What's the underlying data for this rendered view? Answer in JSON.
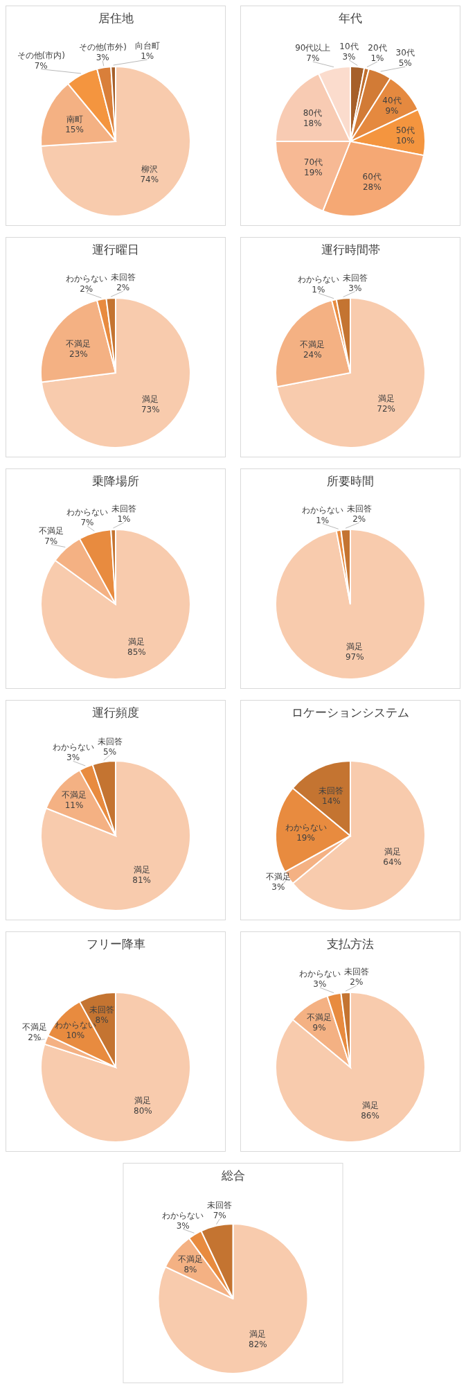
{
  "chart_data": [
    {
      "type": "pie",
      "title": "居住地",
      "categories": [
        "柳沢",
        "南町",
        "その他(市内)",
        "その他(市外)",
        "向台町"
      ],
      "values": [
        74,
        15,
        7,
        3,
        1
      ],
      "colors": [
        "#f8cbad",
        "#f4b183",
        "#f4953f",
        "#d97f3a",
        "#a65f2a"
      ],
      "value_labels": [
        "74%",
        "15%",
        "7%",
        "3%",
        "1%"
      ]
    },
    {
      "type": "pie",
      "title": "年代",
      "categories": [
        "10代",
        "20代",
        "30代",
        "40代",
        "50代",
        "60代",
        "70代",
        "80代",
        "90代以上"
      ],
      "values": [
        3,
        1,
        5,
        9,
        10,
        28,
        19,
        18,
        7
      ],
      "colors": [
        "#a6602a",
        "#c06f2e",
        "#d27b36",
        "#e5893f",
        "#f4953f",
        "#f5a874",
        "#f7b994",
        "#f8cbb3",
        "#fbdccd"
      ],
      "value_labels": [
        "3%",
        "1%",
        "5%",
        "9%",
        "10%",
        "28%",
        "19%",
        "18%",
        "7%"
      ]
    },
    {
      "type": "pie",
      "title": "運行曜日",
      "categories": [
        "満足",
        "不満足",
        "わからない",
        "未回答"
      ],
      "values": [
        73,
        23,
        2,
        2
      ],
      "colors": [
        "#f8cbad",
        "#f4b183",
        "#e88b3f",
        "#c47431"
      ],
      "value_labels": [
        "73%",
        "23%",
        "2%",
        "2%"
      ]
    },
    {
      "type": "pie",
      "title": "運行時間帯",
      "categories": [
        "満足",
        "不満足",
        "わからない",
        "未回答"
      ],
      "values": [
        72,
        24,
        1,
        3
      ],
      "colors": [
        "#f8cbad",
        "#f4b183",
        "#e88b3f",
        "#c47431"
      ],
      "value_labels": [
        "72%",
        "24%",
        "1%",
        "3%"
      ]
    },
    {
      "type": "pie",
      "title": "乗降場所",
      "categories": [
        "満足",
        "不満足",
        "わからない",
        "未回答"
      ],
      "values": [
        85,
        7,
        7,
        1
      ],
      "colors": [
        "#f8cbad",
        "#f4b183",
        "#e88b3f",
        "#c47431"
      ],
      "value_labels": [
        "85%",
        "7%",
        "7%",
        "1%"
      ]
    },
    {
      "type": "pie",
      "title": "所要時間",
      "categories": [
        "満足",
        "わからない",
        "未回答"
      ],
      "values": [
        97,
        1,
        2
      ],
      "colors": [
        "#f8cbad",
        "#e88b3f",
        "#c47431"
      ],
      "value_labels": [
        "97%",
        "1%",
        "2%"
      ]
    },
    {
      "type": "pie",
      "title": "運行頻度",
      "categories": [
        "満足",
        "不満足",
        "わからない",
        "未回答"
      ],
      "values": [
        81,
        11,
        3,
        5
      ],
      "colors": [
        "#f8cbad",
        "#f4b183",
        "#e88b3f",
        "#c47431"
      ],
      "value_labels": [
        "81%",
        "11%",
        "3%",
        "5%"
      ]
    },
    {
      "type": "pie",
      "title": "ロケーションシステム",
      "categories": [
        "満足",
        "不満足",
        "わからない",
        "未回答"
      ],
      "values": [
        64,
        3,
        19,
        14
      ],
      "colors": [
        "#f8cbad",
        "#f4b183",
        "#e88b3f",
        "#c47431"
      ],
      "value_labels": [
        "64%",
        "3%",
        "19%",
        "14%"
      ]
    },
    {
      "type": "pie",
      "title": "フリー降車",
      "categories": [
        "満足",
        "不満足",
        "わからない",
        "未回答"
      ],
      "values": [
        80,
        2,
        10,
        8
      ],
      "colors": [
        "#f8cbad",
        "#f4b183",
        "#e88b3f",
        "#c47431"
      ],
      "value_labels": [
        "80%",
        "2%",
        "10%",
        "8%"
      ]
    },
    {
      "type": "pie",
      "title": "支払方法",
      "categories": [
        "満足",
        "不満足",
        "わからない",
        "未回答"
      ],
      "values": [
        86,
        9,
        3,
        2
      ],
      "colors": [
        "#f8cbad",
        "#f4b183",
        "#e88b3f",
        "#c47431"
      ],
      "value_labels": [
        "86%",
        "9%",
        "3%",
        "2%"
      ]
    },
    {
      "type": "pie",
      "title": "総合",
      "categories": [
        "満足",
        "不満足",
        "わからない",
        "未回答"
      ],
      "values": [
        82,
        8,
        3,
        7
      ],
      "colors": [
        "#f8cbad",
        "#f4b183",
        "#e88b3f",
        "#c47431"
      ],
      "value_labels": [
        "82%",
        "8%",
        "3%",
        "7%"
      ]
    }
  ]
}
